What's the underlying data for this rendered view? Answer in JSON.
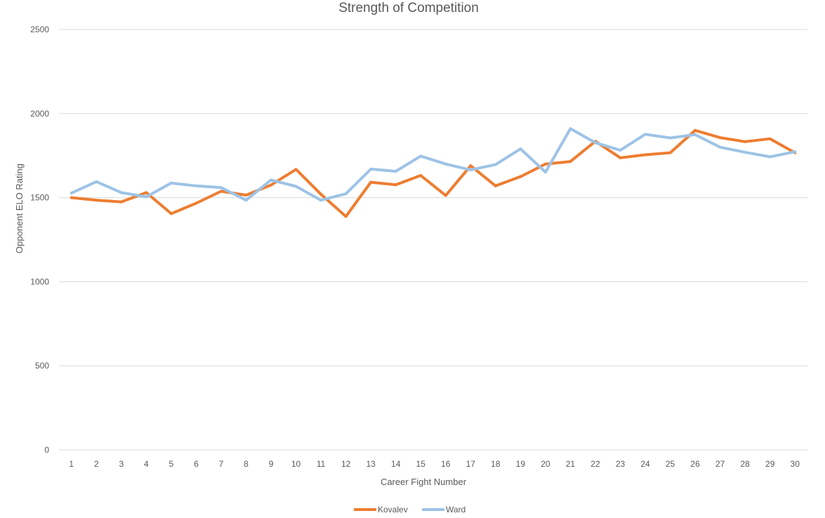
{
  "chart_data": {
    "type": "line",
    "title": "Strength of Competition",
    "xlabel": "Career Fight Number",
    "ylabel": "Opponent ELO Rating",
    "categories": [
      "1",
      "2",
      "3",
      "4",
      "5",
      "6",
      "7",
      "8",
      "9",
      "10",
      "11",
      "12",
      "13",
      "14",
      "15",
      "16",
      "17",
      "18",
      "19",
      "20",
      "21",
      "22",
      "23",
      "24",
      "25",
      "26",
      "27",
      "28",
      "29",
      "30"
    ],
    "ylim": [
      0,
      2500
    ],
    "yticks": [
      0,
      500,
      1000,
      1500,
      2000,
      2500
    ],
    "grid": true,
    "legend_position": "bottom",
    "series": [
      {
        "name": "Kovalev",
        "color": "#ED7D31",
        "values": [
          1500,
          1485,
          1475,
          1530,
          1405,
          1467,
          1538,
          1515,
          1575,
          1668,
          1520,
          1388,
          1592,
          1577,
          1632,
          1513,
          1690,
          1570,
          1625,
          1700,
          1715,
          1835,
          1737,
          1755,
          1767,
          1900,
          1857,
          1833,
          1850,
          1767
        ]
      },
      {
        "name": "Ward",
        "color": "#9DC3E6",
        "values": [
          1527,
          1595,
          1530,
          1505,
          1587,
          1570,
          1560,
          1485,
          1605,
          1567,
          1485,
          1523,
          1670,
          1657,
          1747,
          1700,
          1665,
          1697,
          1790,
          1652,
          1910,
          1827,
          1782,
          1877,
          1855,
          1875,
          1800,
          1770,
          1743,
          1773
        ]
      }
    ]
  }
}
